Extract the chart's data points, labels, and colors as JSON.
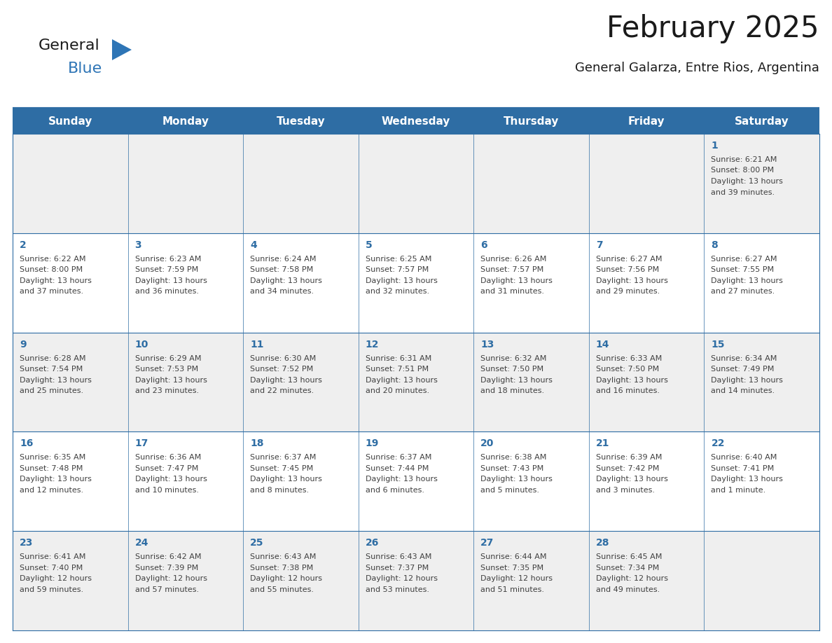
{
  "title": "February 2025",
  "subtitle": "General Galarza, Entre Rios, Argentina",
  "header_bg_color": "#2E6DA4",
  "header_text_color": "#FFFFFF",
  "days_of_week": [
    "Sunday",
    "Monday",
    "Tuesday",
    "Wednesday",
    "Thursday",
    "Friday",
    "Saturday"
  ],
  "bg_color": "#FFFFFF",
  "cell_bg_gray": "#EFEFEF",
  "cell_bg_white": "#FFFFFF",
  "day_number_color": "#2E6DA4",
  "info_text_color": "#404040",
  "border_color": "#2E6DA4",
  "logo_general_color": "#1A1A1A",
  "logo_blue_color": "#2E75B6",
  "title_fontsize": 30,
  "subtitle_fontsize": 13,
  "header_fontsize": 11,
  "day_num_fontsize": 10,
  "info_fontsize": 8,
  "calendar_data": [
    [
      null,
      null,
      null,
      null,
      null,
      null,
      {
        "day": 1,
        "sunrise": "6:21 AM",
        "sunset": "8:00 PM",
        "daylight_l1": "13 hours",
        "daylight_l2": "and 39 minutes."
      }
    ],
    [
      {
        "day": 2,
        "sunrise": "6:22 AM",
        "sunset": "8:00 PM",
        "daylight_l1": "13 hours",
        "daylight_l2": "and 37 minutes."
      },
      {
        "day": 3,
        "sunrise": "6:23 AM",
        "sunset": "7:59 PM",
        "daylight_l1": "13 hours",
        "daylight_l2": "and 36 minutes."
      },
      {
        "day": 4,
        "sunrise": "6:24 AM",
        "sunset": "7:58 PM",
        "daylight_l1": "13 hours",
        "daylight_l2": "and 34 minutes."
      },
      {
        "day": 5,
        "sunrise": "6:25 AM",
        "sunset": "7:57 PM",
        "daylight_l1": "13 hours",
        "daylight_l2": "and 32 minutes."
      },
      {
        "day": 6,
        "sunrise": "6:26 AM",
        "sunset": "7:57 PM",
        "daylight_l1": "13 hours",
        "daylight_l2": "and 31 minutes."
      },
      {
        "day": 7,
        "sunrise": "6:27 AM",
        "sunset": "7:56 PM",
        "daylight_l1": "13 hours",
        "daylight_l2": "and 29 minutes."
      },
      {
        "day": 8,
        "sunrise": "6:27 AM",
        "sunset": "7:55 PM",
        "daylight_l1": "13 hours",
        "daylight_l2": "and 27 minutes."
      }
    ],
    [
      {
        "day": 9,
        "sunrise": "6:28 AM",
        "sunset": "7:54 PM",
        "daylight_l1": "13 hours",
        "daylight_l2": "and 25 minutes."
      },
      {
        "day": 10,
        "sunrise": "6:29 AM",
        "sunset": "7:53 PM",
        "daylight_l1": "13 hours",
        "daylight_l2": "and 23 minutes."
      },
      {
        "day": 11,
        "sunrise": "6:30 AM",
        "sunset": "7:52 PM",
        "daylight_l1": "13 hours",
        "daylight_l2": "and 22 minutes."
      },
      {
        "day": 12,
        "sunrise": "6:31 AM",
        "sunset": "7:51 PM",
        "daylight_l1": "13 hours",
        "daylight_l2": "and 20 minutes."
      },
      {
        "day": 13,
        "sunrise": "6:32 AM",
        "sunset": "7:50 PM",
        "daylight_l1": "13 hours",
        "daylight_l2": "and 18 minutes."
      },
      {
        "day": 14,
        "sunrise": "6:33 AM",
        "sunset": "7:50 PM",
        "daylight_l1": "13 hours",
        "daylight_l2": "and 16 minutes."
      },
      {
        "day": 15,
        "sunrise": "6:34 AM",
        "sunset": "7:49 PM",
        "daylight_l1": "13 hours",
        "daylight_l2": "and 14 minutes."
      }
    ],
    [
      {
        "day": 16,
        "sunrise": "6:35 AM",
        "sunset": "7:48 PM",
        "daylight_l1": "13 hours",
        "daylight_l2": "and 12 minutes."
      },
      {
        "day": 17,
        "sunrise": "6:36 AM",
        "sunset": "7:47 PM",
        "daylight_l1": "13 hours",
        "daylight_l2": "and 10 minutes."
      },
      {
        "day": 18,
        "sunrise": "6:37 AM",
        "sunset": "7:45 PM",
        "daylight_l1": "13 hours",
        "daylight_l2": "and 8 minutes."
      },
      {
        "day": 19,
        "sunrise": "6:37 AM",
        "sunset": "7:44 PM",
        "daylight_l1": "13 hours",
        "daylight_l2": "and 6 minutes."
      },
      {
        "day": 20,
        "sunrise": "6:38 AM",
        "sunset": "7:43 PM",
        "daylight_l1": "13 hours",
        "daylight_l2": "and 5 minutes."
      },
      {
        "day": 21,
        "sunrise": "6:39 AM",
        "sunset": "7:42 PM",
        "daylight_l1": "13 hours",
        "daylight_l2": "and 3 minutes."
      },
      {
        "day": 22,
        "sunrise": "6:40 AM",
        "sunset": "7:41 PM",
        "daylight_l1": "13 hours",
        "daylight_l2": "and 1 minute."
      }
    ],
    [
      {
        "day": 23,
        "sunrise": "6:41 AM",
        "sunset": "7:40 PM",
        "daylight_l1": "12 hours",
        "daylight_l2": "and 59 minutes."
      },
      {
        "day": 24,
        "sunrise": "6:42 AM",
        "sunset": "7:39 PM",
        "daylight_l1": "12 hours",
        "daylight_l2": "and 57 minutes."
      },
      {
        "day": 25,
        "sunrise": "6:43 AM",
        "sunset": "7:38 PM",
        "daylight_l1": "12 hours",
        "daylight_l2": "and 55 minutes."
      },
      {
        "day": 26,
        "sunrise": "6:43 AM",
        "sunset": "7:37 PM",
        "daylight_l1": "12 hours",
        "daylight_l2": "and 53 minutes."
      },
      {
        "day": 27,
        "sunrise": "6:44 AM",
        "sunset": "7:35 PM",
        "daylight_l1": "12 hours",
        "daylight_l2": "and 51 minutes."
      },
      {
        "day": 28,
        "sunrise": "6:45 AM",
        "sunset": "7:34 PM",
        "daylight_l1": "12 hours",
        "daylight_l2": "and 49 minutes."
      },
      null
    ]
  ]
}
